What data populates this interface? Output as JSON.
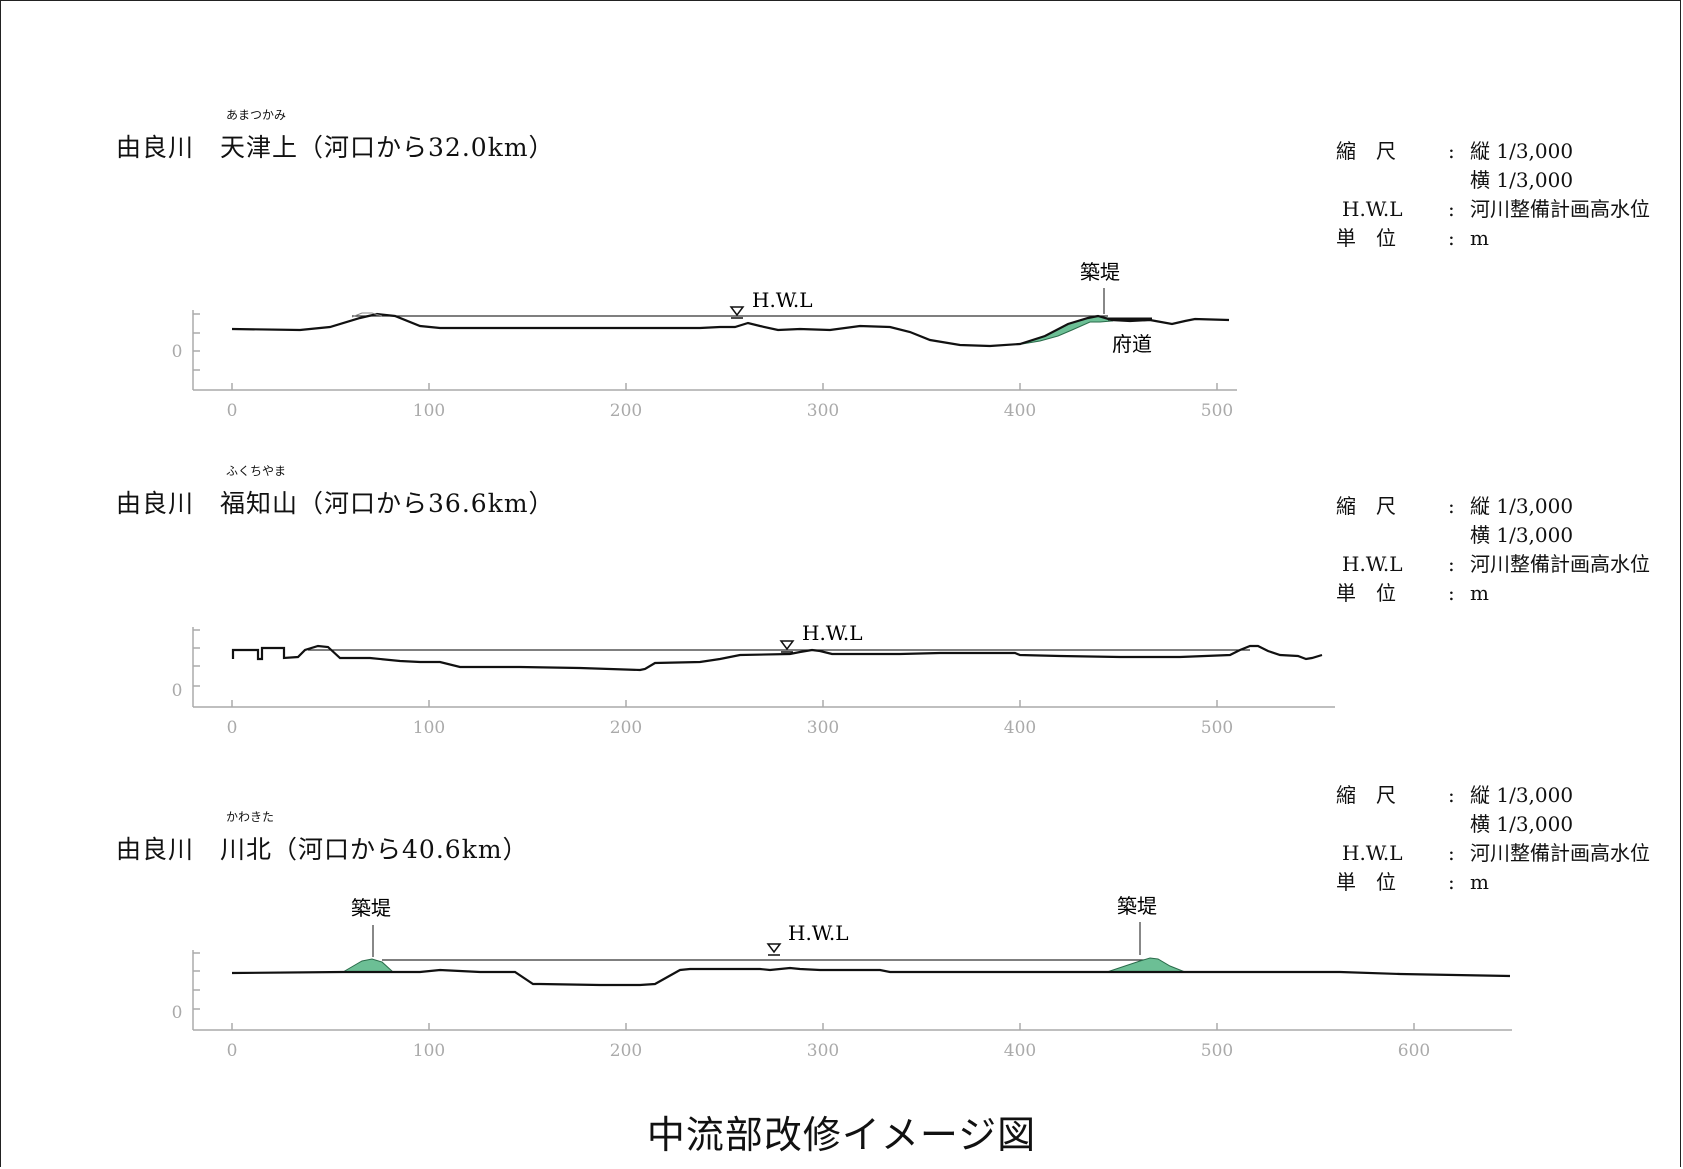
{
  "sections": [
    {
      "river": "由良川",
      "place": "天津上",
      "ruby": "あまつかみ",
      "distance": "（河口から32.0km）",
      "legend": {
        "scale_key": "縮　尺",
        "scale_v": "縦 1/3,000",
        "scale_h": "横 1/3,000",
        "hwl_key": "H.W.L",
        "hwl_val": "河川整備計画高水位",
        "unit_key": "単　位",
        "unit_val": "m",
        "colon": ":"
      },
      "labels": {
        "hwl": "H.W.L",
        "levee": "築堤",
        "road": "府道"
      },
      "axis": {
        "ticks": [
          "0",
          "100",
          "200",
          "300",
          "400",
          "500"
        ],
        "y0": "0"
      }
    },
    {
      "river": "由良川",
      "place": "福知山",
      "ruby": "ふくちやま",
      "distance": "（河口から36.6km）",
      "legend": {
        "scale_key": "縮　尺",
        "scale_v": "縦 1/3,000",
        "scale_h": "横 1/3,000",
        "hwl_key": "H.W.L",
        "hwl_val": "河川整備計画高水位",
        "unit_key": "単　位",
        "unit_val": "m",
        "colon": ":"
      },
      "labels": {
        "hwl": "H.W.L"
      },
      "axis": {
        "ticks": [
          "0",
          "100",
          "200",
          "300",
          "400",
          "500"
        ],
        "y0": "0"
      }
    },
    {
      "river": "由良川",
      "place": "川北",
      "ruby": "かわきた",
      "distance": "（河口から40.6km）",
      "legend": {
        "scale_key": "縮　尺",
        "scale_v": "縦 1/3,000",
        "scale_h": "横 1/3,000",
        "hwl_key": "H.W.L",
        "hwl_val": "河川整備計画高水位",
        "unit_key": "単　位",
        "unit_val": "m",
        "colon": ":"
      },
      "labels": {
        "hwl": "H.W.L",
        "levee_left": "築堤",
        "levee_right": "築堤"
      },
      "axis": {
        "ticks": [
          "0",
          "100",
          "200",
          "300",
          "400",
          "500",
          "600"
        ],
        "y0": "0"
      }
    }
  ],
  "footer_title": "中流部改修イメージ図",
  "colors": {
    "levee_fill": "#6cbf95",
    "axis": "#aaaaaa",
    "line": "#111111"
  }
}
